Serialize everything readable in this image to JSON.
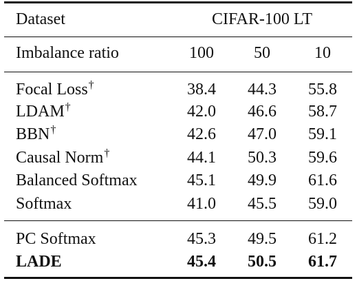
{
  "table": {
    "header": {
      "dataset_label": "Dataset",
      "dataset_value": "CIFAR-100 LT",
      "ratio_label": "Imbalance ratio",
      "ratios": [
        "100",
        "50",
        "10"
      ]
    },
    "dagger": "†",
    "rows": [
      {
        "method": "Focal Loss",
        "dagger": true,
        "v100": "38.4",
        "v50": "44.3",
        "v10": "55.8"
      },
      {
        "method": "LDAM",
        "dagger": true,
        "v100": "42.0",
        "v50": "46.6",
        "v10": "58.7"
      },
      {
        "method": "BBN",
        "dagger": true,
        "v100": "42.6",
        "v50": "47.0",
        "v10": "59.1"
      },
      {
        "method": "Causal Norm",
        "dagger": true,
        "v100": "44.1",
        "v50": "50.3",
        "v10": "59.6"
      },
      {
        "method": "Balanced Softmax",
        "dagger": false,
        "v100": "45.1",
        "v50": "49.9",
        "v10": "61.6"
      },
      {
        "method": "Softmax",
        "dagger": false,
        "v100": "41.0",
        "v50": "45.5",
        "v10": "59.0"
      }
    ],
    "proposed_rows": [
      {
        "method": "PC Softmax",
        "bold": false,
        "v100": "45.3",
        "v50": "49.5",
        "v10": "61.2"
      },
      {
        "method": "LADE",
        "bold": true,
        "v100": "45.4",
        "v50": "50.5",
        "v10": "61.7"
      }
    ]
  }
}
